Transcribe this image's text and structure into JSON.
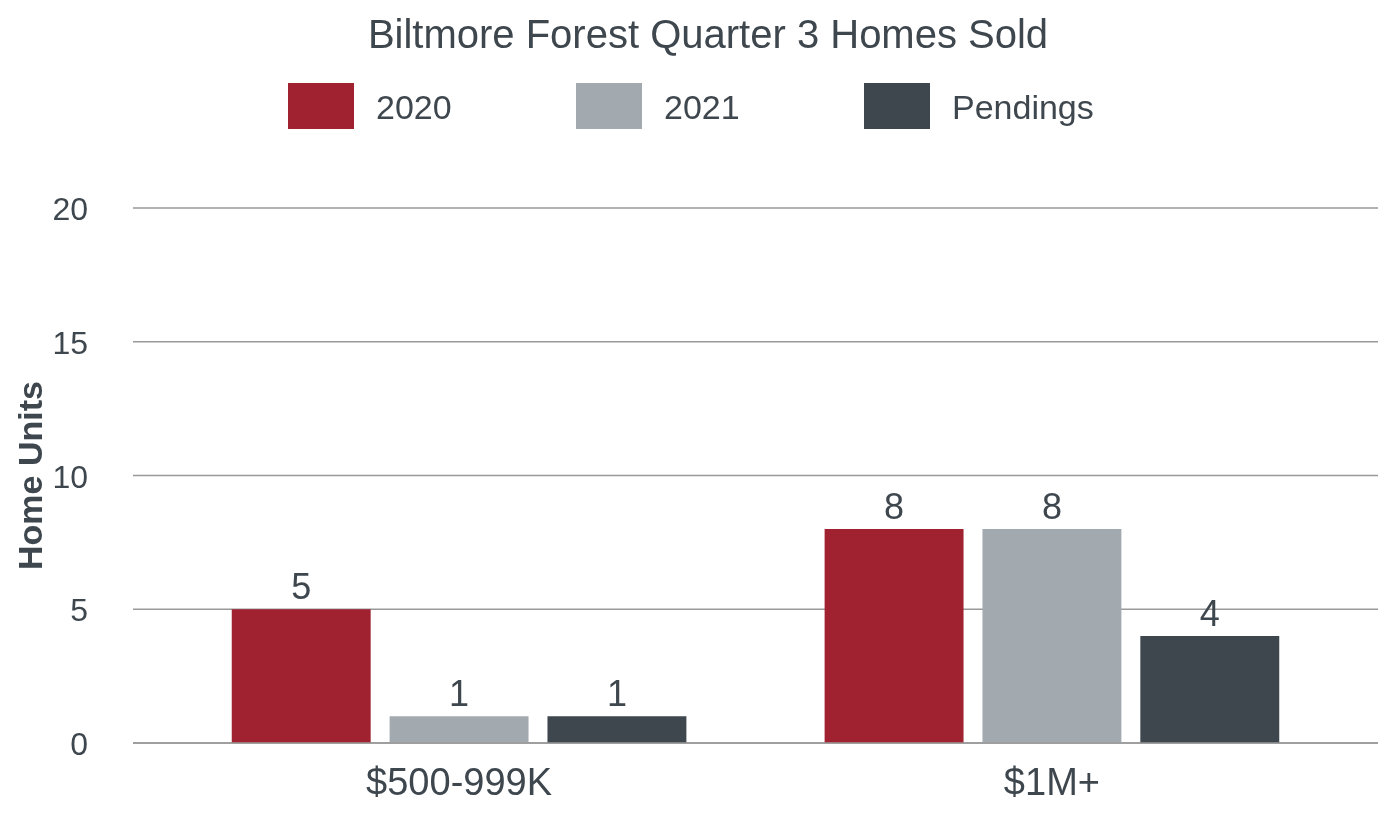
{
  "chart_data": {
    "type": "bar",
    "title": "Biltmore Forest Quarter 3 Homes Sold",
    "ylabel": "Home Units",
    "categories": [
      "$500-999K",
      "$1M+"
    ],
    "series": [
      {
        "name": "2020",
        "color": "#a0212f",
        "values": [
          5,
          8
        ]
      },
      {
        "name": "2021",
        "color": "#a2aab0",
        "values": [
          1,
          8
        ]
      },
      {
        "name": "Pendings",
        "color": "#3f474e",
        "values": [
          1,
          4
        ]
      }
    ],
    "ylim": [
      0,
      20
    ],
    "yticks": [
      0,
      5,
      10,
      15,
      20
    ],
    "grid": "y",
    "legend": "top",
    "data_labels": true
  }
}
